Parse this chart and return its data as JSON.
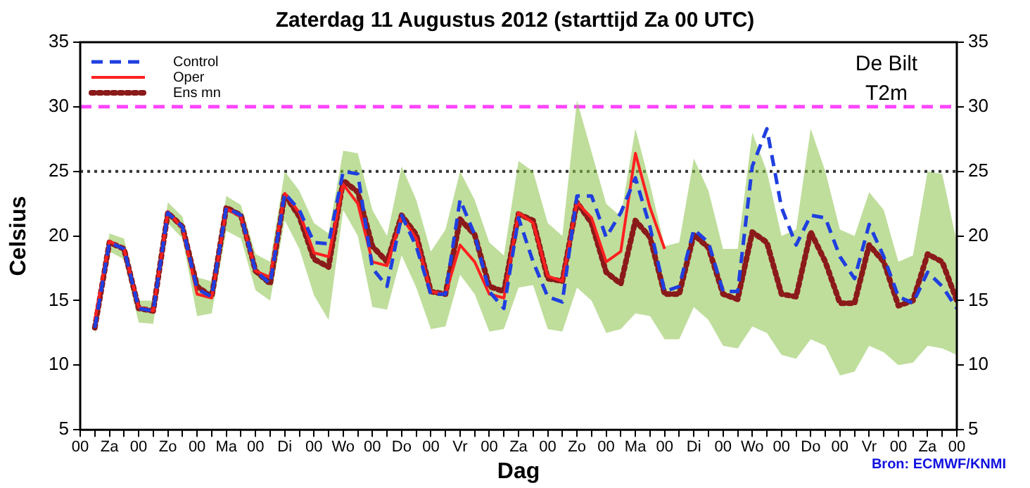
{
  "chart_data": {
    "type": "line",
    "title": "Zaterdag 11 Augustus 2012 (starttijd Za 00 UTC)",
    "xlabel": "Dag",
    "ylabel": "Celsius",
    "annotations": [
      "De Bilt",
      "T2m",
      "Bron: ECMWF/KNMI"
    ],
    "x": [
      "2012-08-11T06:00",
      "2012-08-11T12:00",
      "2012-08-11T18:00",
      "2012-08-12T00:00",
      "2012-08-12T06:00",
      "2012-08-12T12:00",
      "2012-08-12T18:00",
      "2012-08-13T00:00",
      "2012-08-13T06:00",
      "2012-08-13T12:00",
      "2012-08-13T18:00",
      "2012-08-14T00:00",
      "2012-08-14T06:00",
      "2012-08-14T12:00",
      "2012-08-14T18:00",
      "2012-08-15T00:00",
      "2012-08-15T06:00",
      "2012-08-15T12:00",
      "2012-08-15T18:00",
      "2012-08-16T00:00",
      "2012-08-16T06:00",
      "2012-08-16T12:00",
      "2012-08-16T18:00",
      "2012-08-17T00:00",
      "2012-08-17T06:00",
      "2012-08-17T12:00",
      "2012-08-17T18:00",
      "2012-08-18T00:00",
      "2012-08-18T06:00",
      "2012-08-18T12:00",
      "2012-08-18T18:00",
      "2012-08-19T00:00",
      "2012-08-19T06:00",
      "2012-08-19T12:00",
      "2012-08-19T18:00",
      "2012-08-20T00:00",
      "2012-08-20T06:00",
      "2012-08-20T12:00",
      "2012-08-20T18:00",
      "2012-08-21T00:00",
      "2012-08-21T06:00",
      "2012-08-21T12:00",
      "2012-08-21T18:00",
      "2012-08-22T00:00",
      "2012-08-22T06:00",
      "2012-08-22T12:00",
      "2012-08-22T18:00",
      "2012-08-23T00:00",
      "2012-08-23T06:00",
      "2012-08-23T12:00",
      "2012-08-23T18:00",
      "2012-08-24T00:00",
      "2012-08-24T06:00",
      "2012-08-24T12:00",
      "2012-08-24T18:00",
      "2012-08-25T00:00",
      "2012-08-25T06:00",
      "2012-08-25T12:00",
      "2012-08-25T18:00",
      "2012-08-26T00:00"
    ],
    "series": [
      {
        "name": "Control",
        "color": "#1f3fe0",
        "line_style": "dashed",
        "values": [
          12.9,
          19.5,
          19.0,
          14.4,
          14.2,
          21.8,
          20.7,
          15.9,
          15.3,
          22.2,
          21.6,
          17.3,
          16.3,
          23.3,
          22.0,
          19.5,
          19.4,
          25.0,
          24.8,
          17.5,
          16.1,
          21.6,
          19.2,
          15.5,
          15.5,
          22.8,
          20.1,
          15.7,
          14.4,
          21.4,
          18.0,
          15.3,
          14.9,
          23.1,
          23.1,
          19.9,
          21.8,
          24.5,
          20.7,
          15.7,
          16.1,
          20.5,
          19.5,
          15.7,
          15.7,
          25.4,
          28.3,
          22.2,
          19.3,
          21.6,
          21.4,
          18.4,
          16.7,
          20.9,
          18.4,
          15.3,
          14.8,
          17.2,
          16.1,
          14.4
        ]
      },
      {
        "name": "Oper",
        "color": "#ff2020",
        "line_style": "solid",
        "x": [
          "2012-08-11T06:00",
          "2012-08-11T12:00",
          "2012-08-11T18:00",
          "2012-08-12T00:00",
          "2012-08-12T06:00",
          "2012-08-12T12:00",
          "2012-08-12T18:00",
          "2012-08-13T00:00",
          "2012-08-13T06:00",
          "2012-08-13T12:00",
          "2012-08-13T18:00",
          "2012-08-14T00:00",
          "2012-08-14T06:00",
          "2012-08-14T12:00",
          "2012-08-14T18:00",
          "2012-08-15T00:00",
          "2012-08-15T06:00",
          "2012-08-15T12:00",
          "2012-08-15T18:00",
          "2012-08-16T00:00",
          "2012-08-16T06:00",
          "2012-08-16T12:00",
          "2012-08-16T18:00",
          "2012-08-17T00:00",
          "2012-08-17T06:00",
          "2012-08-17T12:00",
          "2012-08-17T18:00",
          "2012-08-18T00:00",
          "2012-08-18T06:00",
          "2012-08-18T12:00",
          "2012-08-18T18:00",
          "2012-08-19T00:00",
          "2012-08-19T06:00",
          "2012-08-19T12:00",
          "2012-08-19T18:00",
          "2012-08-20T00:00",
          "2012-08-20T06:00",
          "2012-08-20T12:00",
          "2012-08-20T18:00",
          "2012-08-21T00:00"
        ],
        "values": [
          13.5,
          19.6,
          19.0,
          14.5,
          14.2,
          21.9,
          20.6,
          15.5,
          15.2,
          22.1,
          21.5,
          17.3,
          16.8,
          23.3,
          21.8,
          18.7,
          18.4,
          24.0,
          22.5,
          18.0,
          17.7,
          21.5,
          19.8,
          15.7,
          15.5,
          19.3,
          18.0,
          15.5,
          15.2,
          21.8,
          21.0,
          16.9,
          16.5,
          22.6,
          21.4,
          18.0,
          18.8,
          26.4,
          22.2,
          19.0
        ]
      },
      {
        "name": "Ens mn",
        "color": "#8b1a1a",
        "line_style": "dotted",
        "values": [
          12.9,
          19.5,
          19.0,
          14.4,
          14.2,
          21.8,
          20.7,
          16.1,
          15.3,
          22.2,
          21.6,
          17.3,
          16.3,
          23.2,
          21.5,
          18.2,
          17.6,
          24.3,
          23.4,
          19.2,
          18.0,
          21.6,
          20.1,
          15.7,
          15.5,
          21.3,
          20.1,
          16.1,
          15.7,
          21.7,
          21.2,
          16.7,
          16.5,
          22.6,
          21.0,
          17.2,
          16.3,
          21.2,
          19.9,
          15.5,
          15.5,
          20.1,
          19.1,
          15.5,
          15.1,
          20.3,
          19.5,
          15.5,
          15.3,
          20.3,
          18.0,
          14.8,
          14.8,
          19.3,
          18.0,
          14.6,
          15.0,
          18.6,
          18.0,
          15.0
        ],
        "lower": [
          12.3,
          18.8,
          18.2,
          13.3,
          13.2,
          21.0,
          19.8,
          13.8,
          14.0,
          20.4,
          19.8,
          15.8,
          15.0,
          21.2,
          19.0,
          15.4,
          13.5,
          22.0,
          20.0,
          14.5,
          14.3,
          18.5,
          16.0,
          12.8,
          13.0,
          17.0,
          15.5,
          12.6,
          12.8,
          16.0,
          16.2,
          12.8,
          12.6,
          16.0,
          15.0,
          12.5,
          12.8,
          14.0,
          13.8,
          12.0,
          12.0,
          14.5,
          13.5,
          11.5,
          11.3,
          13.0,
          12.5,
          10.8,
          10.5,
          12.0,
          11.5,
          9.2,
          9.5,
          11.5,
          11.0,
          10.0,
          10.2,
          11.5,
          11.3,
          10.8
        ],
        "upper": [
          13.5,
          20.2,
          19.8,
          15.0,
          15.0,
          22.6,
          21.5,
          16.8,
          16.5,
          23.1,
          22.4,
          18.6,
          18.0,
          25.0,
          23.5,
          21.0,
          20.2,
          26.6,
          26.4,
          22.0,
          20.0,
          25.4,
          22.8,
          18.8,
          20.5,
          25.0,
          22.8,
          19.5,
          18.5,
          25.8,
          25.0,
          21.0,
          20.0,
          30.5,
          26.5,
          22.5,
          21.5,
          28.3,
          24.0,
          19.2,
          19.5,
          26.0,
          23.5,
          19.0,
          19.0,
          28.0,
          25.0,
          20.0,
          20.5,
          28.3,
          25.0,
          20.5,
          20.0,
          23.4,
          22.0,
          18.0,
          18.5,
          25.0,
          24.8,
          19.5
        ]
      }
    ],
    "xlim": [
      "2012-08-11T00:00",
      "2012-08-26T00:00"
    ],
    "xticks": [
      {
        "value": "2012-08-11T00:00",
        "label": "00"
      },
      {
        "value": "2012-08-11T06:00",
        "label": null
      },
      {
        "value": "2012-08-11T12:00",
        "label": "Za"
      },
      {
        "value": "2012-08-11T18:00",
        "label": null
      },
      {
        "value": "2012-08-12T00:00",
        "label": "00"
      },
      {
        "value": "2012-08-12T06:00",
        "label": null
      },
      {
        "value": "2012-08-12T12:00",
        "label": "Zo"
      },
      {
        "value": "2012-08-12T18:00",
        "label": null
      },
      {
        "value": "2012-08-13T00:00",
        "label": "00"
      },
      {
        "value": "2012-08-13T06:00",
        "label": null
      },
      {
        "value": "2012-08-13T12:00",
        "label": "Ma"
      },
      {
        "value": "2012-08-13T18:00",
        "label": null
      },
      {
        "value": "2012-08-14T00:00",
        "label": "00"
      },
      {
        "value": "2012-08-14T06:00",
        "label": null
      },
      {
        "value": "2012-08-14T12:00",
        "label": "Di"
      },
      {
        "value": "2012-08-14T18:00",
        "label": null
      },
      {
        "value": "2012-08-15T00:00",
        "label": "00"
      },
      {
        "value": "2012-08-15T06:00",
        "label": null
      },
      {
        "value": "2012-08-15T12:00",
        "label": "Wo"
      },
      {
        "value": "2012-08-15T18:00",
        "label": null
      },
      {
        "value": "2012-08-16T00:00",
        "label": "00"
      },
      {
        "value": "2012-08-16T06:00",
        "label": null
      },
      {
        "value": "2012-08-16T12:00",
        "label": "Do"
      },
      {
        "value": "2012-08-16T18:00",
        "label": null
      },
      {
        "value": "2012-08-17T00:00",
        "label": "00"
      },
      {
        "value": "2012-08-17T06:00",
        "label": null
      },
      {
        "value": "2012-08-17T12:00",
        "label": "Vr"
      },
      {
        "value": "2012-08-17T18:00",
        "label": null
      },
      {
        "value": "2012-08-18T00:00",
        "label": "00"
      },
      {
        "value": "2012-08-18T06:00",
        "label": null
      },
      {
        "value": "2012-08-18T12:00",
        "label": "Za"
      },
      {
        "value": "2012-08-18T18:00",
        "label": null
      },
      {
        "value": "2012-08-19T00:00",
        "label": "00"
      },
      {
        "value": "2012-08-19T06:00",
        "label": null
      },
      {
        "value": "2012-08-19T12:00",
        "label": "Zo"
      },
      {
        "value": "2012-08-19T18:00",
        "label": null
      },
      {
        "value": "2012-08-20T00:00",
        "label": "00"
      },
      {
        "value": "2012-08-20T06:00",
        "label": null
      },
      {
        "value": "2012-08-20T12:00",
        "label": "Ma"
      },
      {
        "value": "2012-08-20T18:00",
        "label": null
      },
      {
        "value": "2012-08-21T00:00",
        "label": "00"
      },
      {
        "value": "2012-08-21T06:00",
        "label": null
      },
      {
        "value": "2012-08-21T12:00",
        "label": "Di"
      },
      {
        "value": "2012-08-21T18:00",
        "label": null
      },
      {
        "value": "2012-08-22T00:00",
        "label": "00"
      },
      {
        "value": "2012-08-22T06:00",
        "label": null
      },
      {
        "value": "2012-08-22T12:00",
        "label": "Wo"
      },
      {
        "value": "2012-08-22T18:00",
        "label": null
      },
      {
        "value": "2012-08-23T00:00",
        "label": "00"
      },
      {
        "value": "2012-08-23T06:00",
        "label": null
      },
      {
        "value": "2012-08-23T12:00",
        "label": "Do"
      },
      {
        "value": "2012-08-23T18:00",
        "label": null
      },
      {
        "value": "2012-08-24T00:00",
        "label": "00"
      },
      {
        "value": "2012-08-24T06:00",
        "label": null
      },
      {
        "value": "2012-08-24T12:00",
        "label": "Vr"
      },
      {
        "value": "2012-08-24T18:00",
        "label": null
      },
      {
        "value": "2012-08-25T00:00",
        "label": "00"
      },
      {
        "value": "2012-08-25T06:00",
        "label": null
      },
      {
        "value": "2012-08-25T12:00",
        "label": "Za"
      },
      {
        "value": "2012-08-25T18:00",
        "label": null
      },
      {
        "value": "2012-08-26T00:00",
        "label": "00"
      }
    ],
    "ylim": [
      5,
      35
    ],
    "yticks": [
      5,
      10,
      15,
      20,
      25,
      30,
      35
    ],
    "y2lim": [
      5,
      35
    ],
    "y2ticks": [
      5,
      10,
      15,
      20,
      25,
      30,
      35
    ],
    "ref_lines": [
      {
        "axis": "y",
        "value": 30,
        "color": "#ff44ff",
        "line_style": "dashed"
      },
      {
        "axis": "y",
        "value": 25,
        "color": "#333333",
        "line_style": "dotted"
      }
    ],
    "grid": false,
    "legend": "top left",
    "marker": "none"
  }
}
